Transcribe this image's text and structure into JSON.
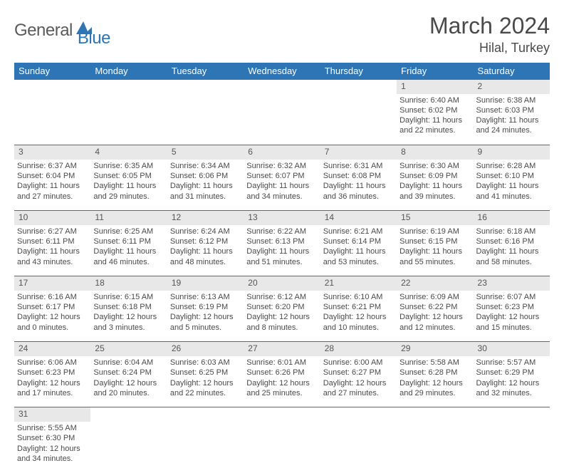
{
  "logo": {
    "part1": "General",
    "part2": "Blue"
  },
  "header": {
    "title": "March 2024",
    "location": "Hilal, Turkey"
  },
  "colors": {
    "brand_blue": "#2e75b6",
    "header_text": "#ffffff",
    "daynum_bg": "#e8e8e8",
    "text": "#4a4a4a",
    "logo_gray": "#5a5a5a"
  },
  "weekdays": [
    "Sunday",
    "Monday",
    "Tuesday",
    "Wednesday",
    "Thursday",
    "Friday",
    "Saturday"
  ],
  "weeks": [
    [
      null,
      null,
      null,
      null,
      null,
      {
        "n": "1",
        "sr": "Sunrise: 6:40 AM",
        "ss": "Sunset: 6:02 PM",
        "d1": "Daylight: 11 hours",
        "d2": "and 22 minutes."
      },
      {
        "n": "2",
        "sr": "Sunrise: 6:38 AM",
        "ss": "Sunset: 6:03 PM",
        "d1": "Daylight: 11 hours",
        "d2": "and 24 minutes."
      }
    ],
    [
      {
        "n": "3",
        "sr": "Sunrise: 6:37 AM",
        "ss": "Sunset: 6:04 PM",
        "d1": "Daylight: 11 hours",
        "d2": "and 27 minutes."
      },
      {
        "n": "4",
        "sr": "Sunrise: 6:35 AM",
        "ss": "Sunset: 6:05 PM",
        "d1": "Daylight: 11 hours",
        "d2": "and 29 minutes."
      },
      {
        "n": "5",
        "sr": "Sunrise: 6:34 AM",
        "ss": "Sunset: 6:06 PM",
        "d1": "Daylight: 11 hours",
        "d2": "and 31 minutes."
      },
      {
        "n": "6",
        "sr": "Sunrise: 6:32 AM",
        "ss": "Sunset: 6:07 PM",
        "d1": "Daylight: 11 hours",
        "d2": "and 34 minutes."
      },
      {
        "n": "7",
        "sr": "Sunrise: 6:31 AM",
        "ss": "Sunset: 6:08 PM",
        "d1": "Daylight: 11 hours",
        "d2": "and 36 minutes."
      },
      {
        "n": "8",
        "sr": "Sunrise: 6:30 AM",
        "ss": "Sunset: 6:09 PM",
        "d1": "Daylight: 11 hours",
        "d2": "and 39 minutes."
      },
      {
        "n": "9",
        "sr": "Sunrise: 6:28 AM",
        "ss": "Sunset: 6:10 PM",
        "d1": "Daylight: 11 hours",
        "d2": "and 41 minutes."
      }
    ],
    [
      {
        "n": "10",
        "sr": "Sunrise: 6:27 AM",
        "ss": "Sunset: 6:11 PM",
        "d1": "Daylight: 11 hours",
        "d2": "and 43 minutes."
      },
      {
        "n": "11",
        "sr": "Sunrise: 6:25 AM",
        "ss": "Sunset: 6:11 PM",
        "d1": "Daylight: 11 hours",
        "d2": "and 46 minutes."
      },
      {
        "n": "12",
        "sr": "Sunrise: 6:24 AM",
        "ss": "Sunset: 6:12 PM",
        "d1": "Daylight: 11 hours",
        "d2": "and 48 minutes."
      },
      {
        "n": "13",
        "sr": "Sunrise: 6:22 AM",
        "ss": "Sunset: 6:13 PM",
        "d1": "Daylight: 11 hours",
        "d2": "and 51 minutes."
      },
      {
        "n": "14",
        "sr": "Sunrise: 6:21 AM",
        "ss": "Sunset: 6:14 PM",
        "d1": "Daylight: 11 hours",
        "d2": "and 53 minutes."
      },
      {
        "n": "15",
        "sr": "Sunrise: 6:19 AM",
        "ss": "Sunset: 6:15 PM",
        "d1": "Daylight: 11 hours",
        "d2": "and 55 minutes."
      },
      {
        "n": "16",
        "sr": "Sunrise: 6:18 AM",
        "ss": "Sunset: 6:16 PM",
        "d1": "Daylight: 11 hours",
        "d2": "and 58 minutes."
      }
    ],
    [
      {
        "n": "17",
        "sr": "Sunrise: 6:16 AM",
        "ss": "Sunset: 6:17 PM",
        "d1": "Daylight: 12 hours",
        "d2": "and 0 minutes."
      },
      {
        "n": "18",
        "sr": "Sunrise: 6:15 AM",
        "ss": "Sunset: 6:18 PM",
        "d1": "Daylight: 12 hours",
        "d2": "and 3 minutes."
      },
      {
        "n": "19",
        "sr": "Sunrise: 6:13 AM",
        "ss": "Sunset: 6:19 PM",
        "d1": "Daylight: 12 hours",
        "d2": "and 5 minutes."
      },
      {
        "n": "20",
        "sr": "Sunrise: 6:12 AM",
        "ss": "Sunset: 6:20 PM",
        "d1": "Daylight: 12 hours",
        "d2": "and 8 minutes."
      },
      {
        "n": "21",
        "sr": "Sunrise: 6:10 AM",
        "ss": "Sunset: 6:21 PM",
        "d1": "Daylight: 12 hours",
        "d2": "and 10 minutes."
      },
      {
        "n": "22",
        "sr": "Sunrise: 6:09 AM",
        "ss": "Sunset: 6:22 PM",
        "d1": "Daylight: 12 hours",
        "d2": "and 12 minutes."
      },
      {
        "n": "23",
        "sr": "Sunrise: 6:07 AM",
        "ss": "Sunset: 6:23 PM",
        "d1": "Daylight: 12 hours",
        "d2": "and 15 minutes."
      }
    ],
    [
      {
        "n": "24",
        "sr": "Sunrise: 6:06 AM",
        "ss": "Sunset: 6:23 PM",
        "d1": "Daylight: 12 hours",
        "d2": "and 17 minutes."
      },
      {
        "n": "25",
        "sr": "Sunrise: 6:04 AM",
        "ss": "Sunset: 6:24 PM",
        "d1": "Daylight: 12 hours",
        "d2": "and 20 minutes."
      },
      {
        "n": "26",
        "sr": "Sunrise: 6:03 AM",
        "ss": "Sunset: 6:25 PM",
        "d1": "Daylight: 12 hours",
        "d2": "and 22 minutes."
      },
      {
        "n": "27",
        "sr": "Sunrise: 6:01 AM",
        "ss": "Sunset: 6:26 PM",
        "d1": "Daylight: 12 hours",
        "d2": "and 25 minutes."
      },
      {
        "n": "28",
        "sr": "Sunrise: 6:00 AM",
        "ss": "Sunset: 6:27 PM",
        "d1": "Daylight: 12 hours",
        "d2": "and 27 minutes."
      },
      {
        "n": "29",
        "sr": "Sunrise: 5:58 AM",
        "ss": "Sunset: 6:28 PM",
        "d1": "Daylight: 12 hours",
        "d2": "and 29 minutes."
      },
      {
        "n": "30",
        "sr": "Sunrise: 5:57 AM",
        "ss": "Sunset: 6:29 PM",
        "d1": "Daylight: 12 hours",
        "d2": "and 32 minutes."
      }
    ],
    [
      {
        "n": "31",
        "sr": "Sunrise: 5:55 AM",
        "ss": "Sunset: 6:30 PM",
        "d1": "Daylight: 12 hours",
        "d2": "and 34 minutes."
      },
      null,
      null,
      null,
      null,
      null,
      null
    ]
  ]
}
